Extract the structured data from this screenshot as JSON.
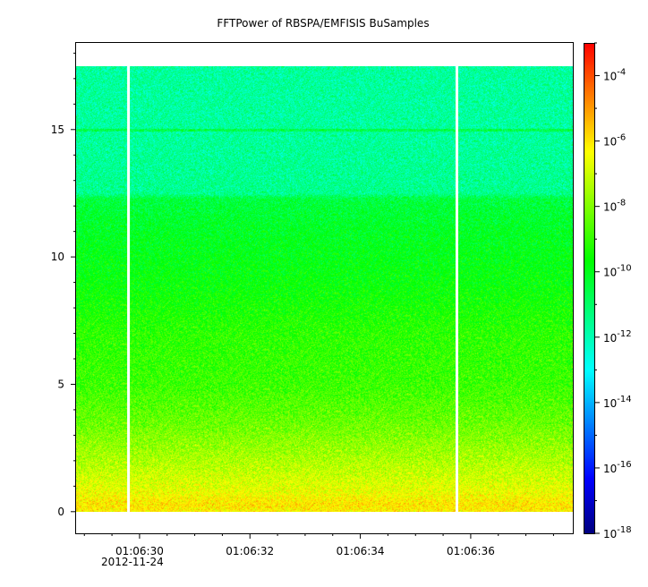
{
  "chart_data": {
    "type": "heatmap",
    "title": "FFTPower of RBSPA/EMFISIS  BuSamples",
    "xlabel": "",
    "ylabel": "",
    "x_ticks": [
      {
        "time": "01:06:30",
        "date": "2012-11-24"
      },
      {
        "time": "01:06:32",
        "date": ""
      },
      {
        "time": "01:06:34",
        "date": ""
      },
      {
        "time": "01:06:36",
        "date": ""
      }
    ],
    "x_range_seconds": [
      28.85,
      37.85
    ],
    "y_ticks": [
      0,
      5,
      10,
      15
    ],
    "ylim": [
      -0.85,
      18.4
    ],
    "data_y_range": [
      0.0,
      17.5
    ],
    "gaps_seconds": [
      29.8,
      35.75
    ],
    "colorbar": {
      "scale": "log",
      "range": [
        1e-18,
        0.001
      ],
      "ticks": [
        {
          "base": "10",
          "exp": "-4",
          "value": 0.0001
        },
        {
          "base": "10",
          "exp": "-6",
          "value": 1e-06
        },
        {
          "base": "10",
          "exp": "-8",
          "value": 1e-08
        },
        {
          "base": "10",
          "exp": "-10",
          "value": 1e-10
        },
        {
          "base": "10",
          "exp": "-12",
          "value": 1e-12
        },
        {
          "base": "10",
          "exp": "-14",
          "value": 1e-14
        },
        {
          "base": "10",
          "exp": "-16",
          "value": 1e-16
        },
        {
          "base": "10",
          "exp": "-18",
          "value": 1e-18
        }
      ],
      "colors": [
        "#00007f",
        "#0000ff",
        "#0080ff",
        "#00ffff",
        "#00ff80",
        "#00ff00",
        "#80ff00",
        "#ffff00",
        "#ff8000",
        "#ff0000"
      ]
    },
    "power_profile_log10": [
      {
        "y": 0.0,
        "v": -6.2
      },
      {
        "y": 0.3,
        "v": -6.0
      },
      {
        "y": 0.8,
        "v": -6.6
      },
      {
        "y": 2.0,
        "v": -7.4
      },
      {
        "y": 3.5,
        "v": -8.3
      },
      {
        "y": 5.0,
        "v": -8.9
      },
      {
        "y": 7.0,
        "v": -9.1
      },
      {
        "y": 9.0,
        "v": -9.7
      },
      {
        "y": 11.0,
        "v": -10.1
      },
      {
        "y": 12.3,
        "v": -10.5
      },
      {
        "y": 12.5,
        "v": -11.5
      },
      {
        "y": 15.0,
        "v": -11.7
      },
      {
        "y": 17.5,
        "v": -11.7
      }
    ],
    "horizontal_line": {
      "y": 15.0,
      "v": -10.6
    }
  }
}
